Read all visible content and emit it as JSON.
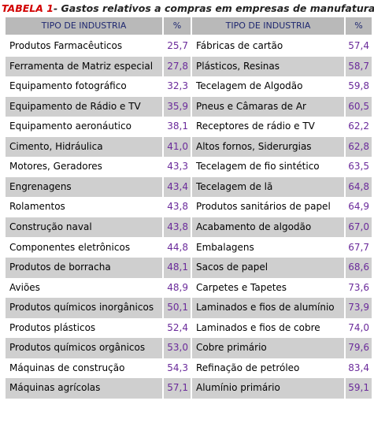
{
  "title": {
    "label": "TABELA 1",
    "text": "- Gastos relativos a compras em empresas de manufatura."
  },
  "table": {
    "headers": [
      "TIPO DE INDUSTRIA",
      "%",
      "TIPO DE INDUSTRIA",
      "%"
    ],
    "rows": [
      [
        "Produtos Farmacêuticos",
        "25,7",
        "Fábricas de cartão",
        "57,4"
      ],
      [
        "Ferramenta de Matriz especial",
        "27,8",
        "Plásticos, Resinas",
        "58,7"
      ],
      [
        "Equipamento fotográfico",
        "32,3",
        "Tecelagem de Algodão",
        "59,8"
      ],
      [
        "Equipamento de Rádio e TV",
        "35,9",
        "Pneus e Câmaras de Ar",
        "60,5"
      ],
      [
        "Equipamento aeronáutico",
        "38,1",
        "Receptores de rádio e TV",
        "62,2"
      ],
      [
        "Cimento, Hidráulica",
        "41,0",
        "Altos fornos, Siderurgias",
        "62,8"
      ],
      [
        "Motores, Geradores",
        "43,3",
        "Tecelagem de fio sintético",
        "63,5"
      ],
      [
        "Engrenagens",
        "43,4",
        "Tecelagem de lã",
        "64,8"
      ],
      [
        "Rolamentos",
        "43,8",
        "Produtos sanitários de papel",
        "64,9"
      ],
      [
        "Construção naval",
        "43,8",
        "Acabamento de algodão",
        "67,0"
      ],
      [
        "Componentes eletrônicos",
        "44,8",
        "Embalagens",
        "67,7"
      ],
      [
        "Produtos de borracha",
        "48,1",
        "Sacos de papel",
        "68,6"
      ],
      [
        "Aviões",
        "48,9",
        "Carpetes e Tapetes",
        "73,6"
      ],
      [
        "Produtos químicos inorgânicos",
        "50,1",
        "Laminados e fios de alumínio",
        "73,9"
      ],
      [
        "Produtos plásticos",
        "52,4",
        "Laminados e fios de cobre",
        "74,0"
      ],
      [
        "Produtos químicos orgânicos",
        "53,0",
        "Cobre primário",
        "79,6"
      ],
      [
        "Máquinas de construção",
        "54,3",
        "Refinação de petróleo",
        "83,4"
      ],
      [
        "Máquinas agrícolas",
        "57,1",
        "Alumínio primário",
        "59,1"
      ]
    ]
  }
}
